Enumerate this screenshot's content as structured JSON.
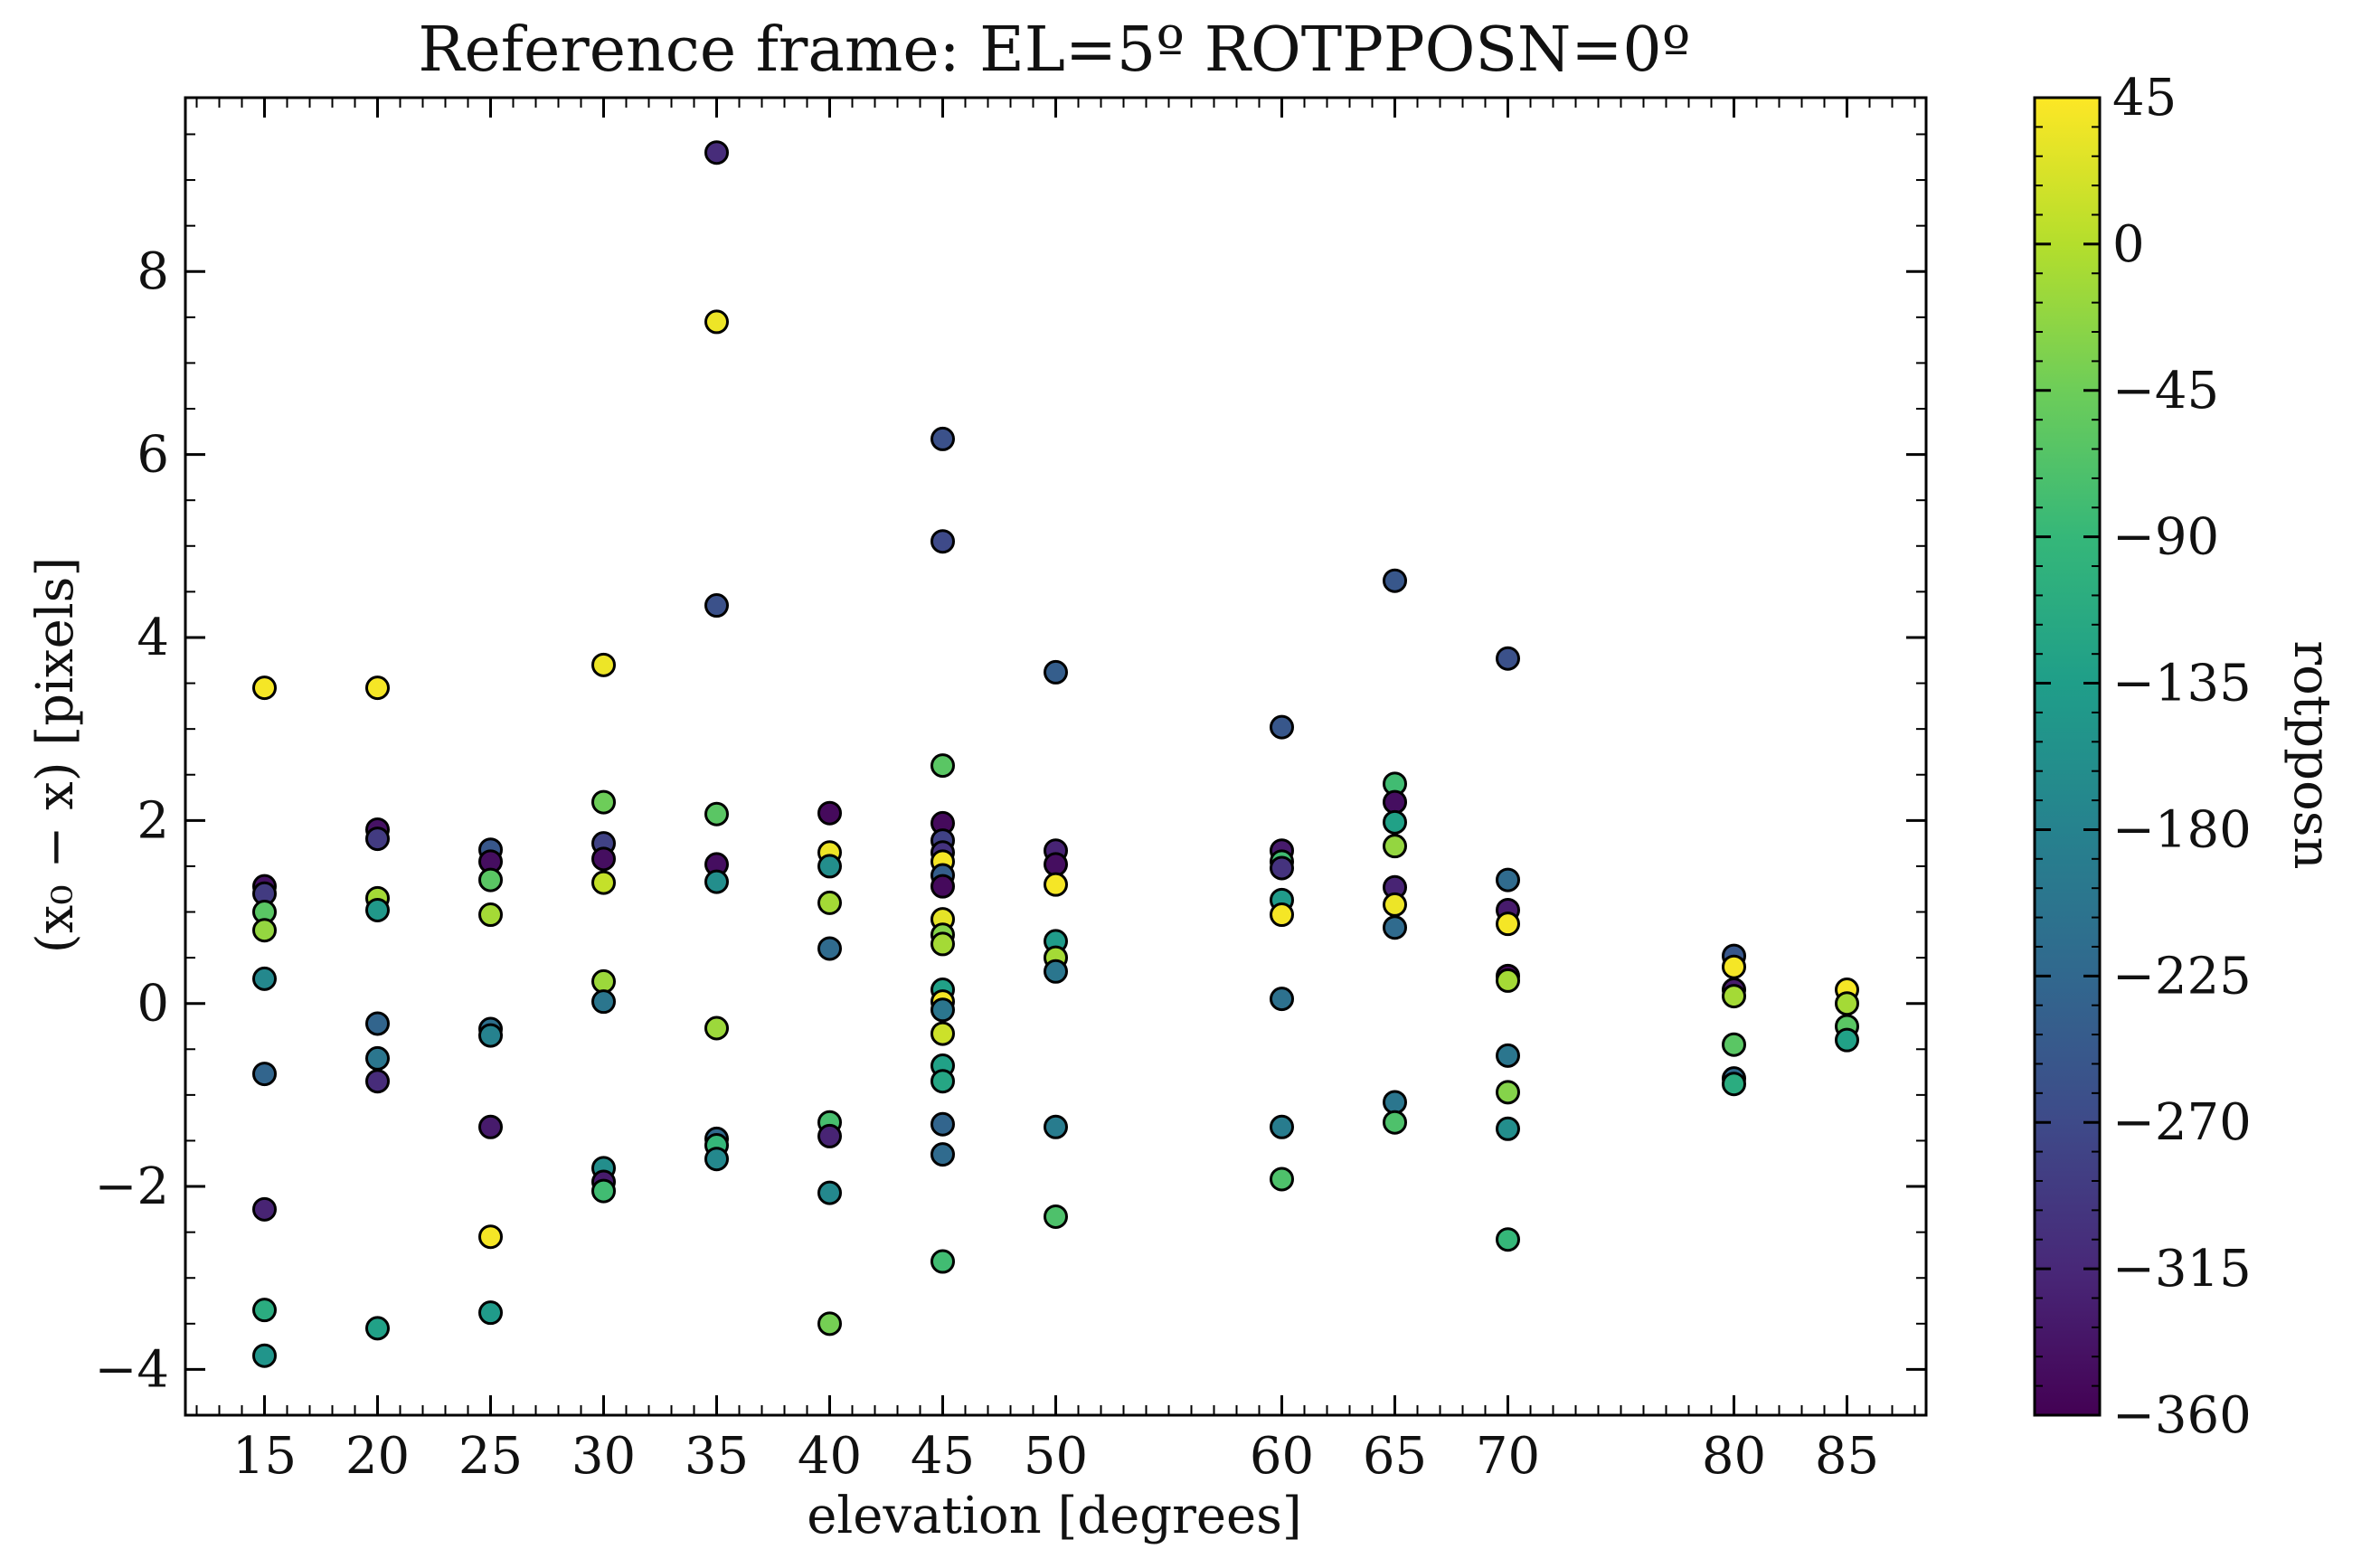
{
  "chart_data": {
    "type": "scatter",
    "title": "Reference frame: EL=5º ROTPPOSN=0º",
    "xlabel": "elevation [degrees]",
    "ylabel": "(x₀ − x) [pixels]",
    "xlim": [
      11.5,
      88.5
    ],
    "ylim": [
      -4.5,
      9.9
    ],
    "x_ticks": [
      15,
      20,
      25,
      30,
      35,
      40,
      45,
      50,
      60,
      65,
      70,
      80,
      85
    ],
    "x_tick_labels": [
      "15",
      "20",
      "25",
      "30",
      "35",
      "40",
      "45",
      "50",
      "60",
      "65",
      "70",
      "80",
      "85"
    ],
    "y_ticks": [
      -4,
      -2,
      0,
      2,
      4,
      6,
      8
    ],
    "y_tick_labels": [
      "−4",
      "−2",
      "0",
      "2",
      "4",
      "6",
      "8"
    ],
    "grid": false,
    "marker_edge_color": "#000000",
    "colorbar": {
      "label": "rotpposn",
      "colormap": "viridis",
      "range": [
        -360,
        45
      ],
      "ticks": [
        45,
        0,
        -45,
        -90,
        -135,
        -180,
        -225,
        -270,
        -315,
        -360
      ],
      "tick_labels": [
        "45",
        "0",
        "−45",
        "−90",
        "−135",
        "−180",
        "−225",
        "−270",
        "−315",
        "−360"
      ]
    },
    "points": [
      {
        "x": 15,
        "y": 3.45,
        "c": 40
      },
      {
        "x": 15,
        "y": 1.28,
        "c": -340
      },
      {
        "x": 15,
        "y": 1.2,
        "c": -290
      },
      {
        "x": 15,
        "y": 1.0,
        "c": -60
      },
      {
        "x": 15,
        "y": 0.8,
        "c": -20
      },
      {
        "x": 15,
        "y": 0.27,
        "c": -170
      },
      {
        "x": 15,
        "y": -0.77,
        "c": -230
      },
      {
        "x": 15,
        "y": -2.25,
        "c": -320
      },
      {
        "x": 15,
        "y": -3.35,
        "c": -110
      },
      {
        "x": 15,
        "y": -3.85,
        "c": -150
      },
      {
        "x": 20,
        "y": 3.45,
        "c": 40
      },
      {
        "x": 20,
        "y": 1.9,
        "c": -340
      },
      {
        "x": 20,
        "y": 1.8,
        "c": -290
      },
      {
        "x": 20,
        "y": 1.15,
        "c": -10
      },
      {
        "x": 20,
        "y": 1.02,
        "c": -145
      },
      {
        "x": 20,
        "y": -0.22,
        "c": -230
      },
      {
        "x": 20,
        "y": -0.6,
        "c": -200
      },
      {
        "x": 20,
        "y": -0.85,
        "c": -310
      },
      {
        "x": 20,
        "y": -3.55,
        "c": -130
      },
      {
        "x": 25,
        "y": 1.68,
        "c": -250
      },
      {
        "x": 25,
        "y": 1.55,
        "c": -345
      },
      {
        "x": 25,
        "y": 1.35,
        "c": -60
      },
      {
        "x": 25,
        "y": 0.97,
        "c": -10
      },
      {
        "x": 25,
        "y": -0.28,
        "c": -210
      },
      {
        "x": 25,
        "y": -0.35,
        "c": -180
      },
      {
        "x": 25,
        "y": -1.35,
        "c": -330
      },
      {
        "x": 25,
        "y": -2.55,
        "c": 40
      },
      {
        "x": 25,
        "y": -3.38,
        "c": -140
      },
      {
        "x": 30,
        "y": 3.7,
        "c": 35
      },
      {
        "x": 30,
        "y": 2.2,
        "c": -45
      },
      {
        "x": 30,
        "y": 1.75,
        "c": -280
      },
      {
        "x": 30,
        "y": 1.58,
        "c": -345
      },
      {
        "x": 30,
        "y": 1.32,
        "c": 10
      },
      {
        "x": 30,
        "y": 0.24,
        "c": -15
      },
      {
        "x": 30,
        "y": 0.02,
        "c": -200
      },
      {
        "x": 30,
        "y": -1.8,
        "c": -160
      },
      {
        "x": 30,
        "y": -1.95,
        "c": -330
      },
      {
        "x": 30,
        "y": -2.05,
        "c": -80
      },
      {
        "x": 35,
        "y": 9.3,
        "c": -310
      },
      {
        "x": 35,
        "y": 7.45,
        "c": 35
      },
      {
        "x": 35,
        "y": 4.35,
        "c": -260
      },
      {
        "x": 35,
        "y": 2.07,
        "c": -60
      },
      {
        "x": 35,
        "y": 1.52,
        "c": -345
      },
      {
        "x": 35,
        "y": 1.33,
        "c": -160
      },
      {
        "x": 35,
        "y": -0.27,
        "c": -15
      },
      {
        "x": 35,
        "y": -1.48,
        "c": -220
      },
      {
        "x": 35,
        "y": -1.55,
        "c": -90
      },
      {
        "x": 35,
        "y": -1.7,
        "c": -170
      },
      {
        "x": 40,
        "y": 2.08,
        "c": -350
      },
      {
        "x": 40,
        "y": 1.65,
        "c": 35
      },
      {
        "x": 40,
        "y": 1.5,
        "c": -160
      },
      {
        "x": 40,
        "y": 1.1,
        "c": -10
      },
      {
        "x": 40,
        "y": 0.6,
        "c": -220
      },
      {
        "x": 40,
        "y": -1.3,
        "c": -75
      },
      {
        "x": 40,
        "y": -1.45,
        "c": -320
      },
      {
        "x": 40,
        "y": -2.07,
        "c": -170
      },
      {
        "x": 40,
        "y": -3.5,
        "c": -40
      },
      {
        "x": 45,
        "y": 6.17,
        "c": -260
      },
      {
        "x": 45,
        "y": 5.05,
        "c": -270
      },
      {
        "x": 45,
        "y": 2.6,
        "c": -60
      },
      {
        "x": 45,
        "y": 1.97,
        "c": -350
      },
      {
        "x": 45,
        "y": 1.78,
        "c": -280
      },
      {
        "x": 45,
        "y": 1.65,
        "c": -300
      },
      {
        "x": 45,
        "y": 1.55,
        "c": 40
      },
      {
        "x": 45,
        "y": 1.4,
        "c": -240
      },
      {
        "x": 45,
        "y": 1.28,
        "c": -350
      },
      {
        "x": 45,
        "y": 0.92,
        "c": 30
      },
      {
        "x": 45,
        "y": 0.75,
        "c": -30
      },
      {
        "x": 45,
        "y": 0.65,
        "c": -10
      },
      {
        "x": 45,
        "y": 0.15,
        "c": -130
      },
      {
        "x": 45,
        "y": 0.02,
        "c": 40
      },
      {
        "x": 45,
        "y": -0.07,
        "c": -200
      },
      {
        "x": 45,
        "y": -0.33,
        "c": 15
      },
      {
        "x": 45,
        "y": -0.68,
        "c": -130
      },
      {
        "x": 45,
        "y": -0.85,
        "c": -120
      },
      {
        "x": 45,
        "y": -1.32,
        "c": -230
      },
      {
        "x": 45,
        "y": -1.65,
        "c": -220
      },
      {
        "x": 45,
        "y": -2.82,
        "c": -80
      },
      {
        "x": 50,
        "y": 3.62,
        "c": -240
      },
      {
        "x": 50,
        "y": 1.67,
        "c": -320
      },
      {
        "x": 50,
        "y": 1.52,
        "c": -345
      },
      {
        "x": 50,
        "y": 1.3,
        "c": 40
      },
      {
        "x": 50,
        "y": 0.68,
        "c": -140
      },
      {
        "x": 50,
        "y": 0.5,
        "c": -10
      },
      {
        "x": 50,
        "y": 0.35,
        "c": -200
      },
      {
        "x": 50,
        "y": -1.35,
        "c": -190
      },
      {
        "x": 50,
        "y": -2.33,
        "c": -70
      },
      {
        "x": 60,
        "y": 3.02,
        "c": -250
      },
      {
        "x": 60,
        "y": 1.67,
        "c": -330
      },
      {
        "x": 60,
        "y": 1.55,
        "c": -80
      },
      {
        "x": 60,
        "y": 1.48,
        "c": -300
      },
      {
        "x": 60,
        "y": 1.13,
        "c": -140
      },
      {
        "x": 60,
        "y": 0.97,
        "c": 40
      },
      {
        "x": 60,
        "y": 0.05,
        "c": -210
      },
      {
        "x": 60,
        "y": -1.35,
        "c": -190
      },
      {
        "x": 60,
        "y": -1.92,
        "c": -70
      },
      {
        "x": 65,
        "y": 4.62,
        "c": -250
      },
      {
        "x": 65,
        "y": 2.4,
        "c": -80
      },
      {
        "x": 65,
        "y": 2.2,
        "c": -345
      },
      {
        "x": 65,
        "y": 1.98,
        "c": -130
      },
      {
        "x": 65,
        "y": 1.72,
        "c": -20
      },
      {
        "x": 65,
        "y": 1.27,
        "c": -320
      },
      {
        "x": 65,
        "y": 1.08,
        "c": 35
      },
      {
        "x": 65,
        "y": 0.83,
        "c": -220
      },
      {
        "x": 65,
        "y": -1.08,
        "c": -200
      },
      {
        "x": 65,
        "y": -1.3,
        "c": -70
      },
      {
        "x": 70,
        "y": 3.77,
        "c": -260
      },
      {
        "x": 70,
        "y": 1.35,
        "c": -220
      },
      {
        "x": 70,
        "y": 1.02,
        "c": -330
      },
      {
        "x": 70,
        "y": 0.87,
        "c": 40
      },
      {
        "x": 70,
        "y": 0.3,
        "c": -350
      },
      {
        "x": 70,
        "y": 0.25,
        "c": -10
      },
      {
        "x": 70,
        "y": -0.57,
        "c": -200
      },
      {
        "x": 70,
        "y": -0.97,
        "c": -30
      },
      {
        "x": 70,
        "y": -1.37,
        "c": -160
      },
      {
        "x": 70,
        "y": -2.58,
        "c": -90
      },
      {
        "x": 80,
        "y": 0.52,
        "c": -250
      },
      {
        "x": 80,
        "y": 0.4,
        "c": 40
      },
      {
        "x": 80,
        "y": 0.15,
        "c": -330
      },
      {
        "x": 80,
        "y": 0.08,
        "c": -10
      },
      {
        "x": 80,
        "y": -0.45,
        "c": -60
      },
      {
        "x": 80,
        "y": -0.82,
        "c": -220
      },
      {
        "x": 80,
        "y": -0.88,
        "c": -110
      },
      {
        "x": 85,
        "y": 0.15,
        "c": 40
      },
      {
        "x": 85,
        "y": 0.0,
        "c": -10
      },
      {
        "x": 85,
        "y": -0.25,
        "c": -60
      },
      {
        "x": 85,
        "y": -0.4,
        "c": -130
      }
    ]
  }
}
